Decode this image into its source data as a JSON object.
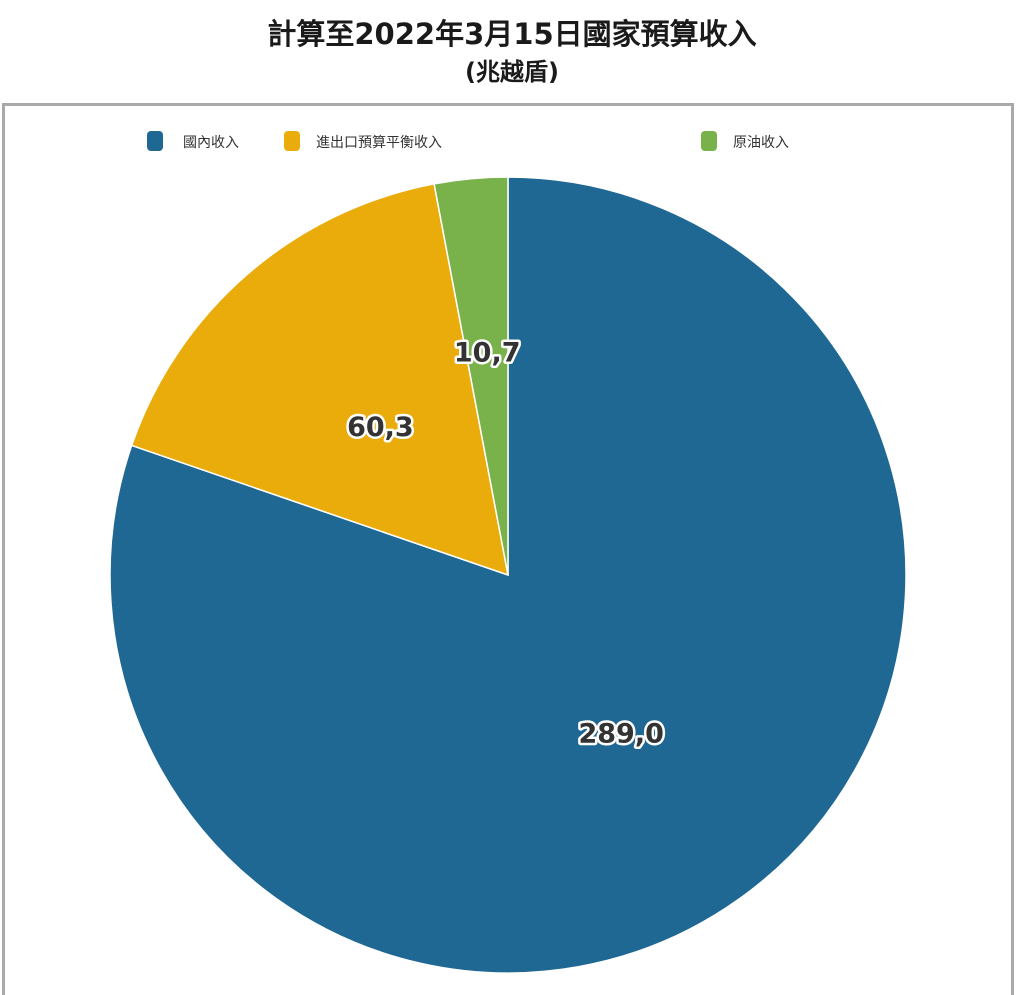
{
  "chart_data": {
    "type": "pie",
    "title": "計算至2022年3月15日國家預算收入",
    "subtitle": "(兆越盾)",
    "categories": [
      "國內收入",
      "進出口預算平衡收入",
      "原油收入"
    ],
    "values": [
      289.0,
      60.3,
      10.7
    ],
    "value_labels": [
      "289,0",
      "60,3",
      "10,7"
    ],
    "colors": [
      "#1f6894",
      "#eaac0b",
      "#79b14a"
    ],
    "legend_position": "top",
    "start_angle": "12 o'clock",
    "direction": "clockwise"
  }
}
